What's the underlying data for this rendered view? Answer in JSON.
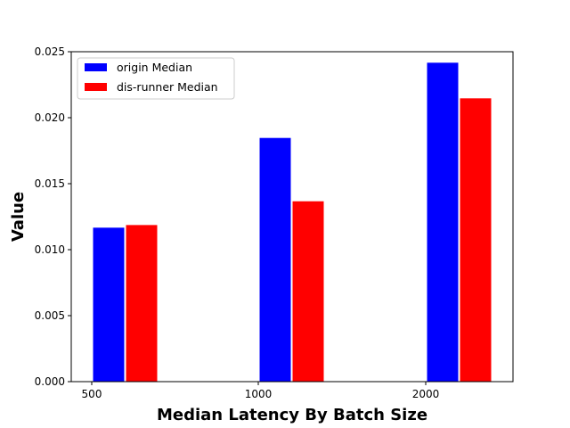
{
  "chart_data": {
    "type": "bar",
    "categories": [
      "500",
      "1000",
      "2000"
    ],
    "series": [
      {
        "name": "origin Median",
        "color": "#0000ff",
        "values": [
          0.0117,
          0.0185,
          0.0242
        ]
      },
      {
        "name": "dis-runner Median",
        "color": "#ff0000",
        "values": [
          0.0119,
          0.0137,
          0.0215
        ]
      }
    ],
    "title": "",
    "xlabel": "Median Latency By Batch Size",
    "ylabel": "Value",
    "ylim": [
      0,
      0.025
    ],
    "yticks": [
      "0.000",
      "0.005",
      "0.010",
      "0.015",
      "0.020",
      "0.025"
    ],
    "grid": false,
    "legend_position": "upper-left"
  }
}
